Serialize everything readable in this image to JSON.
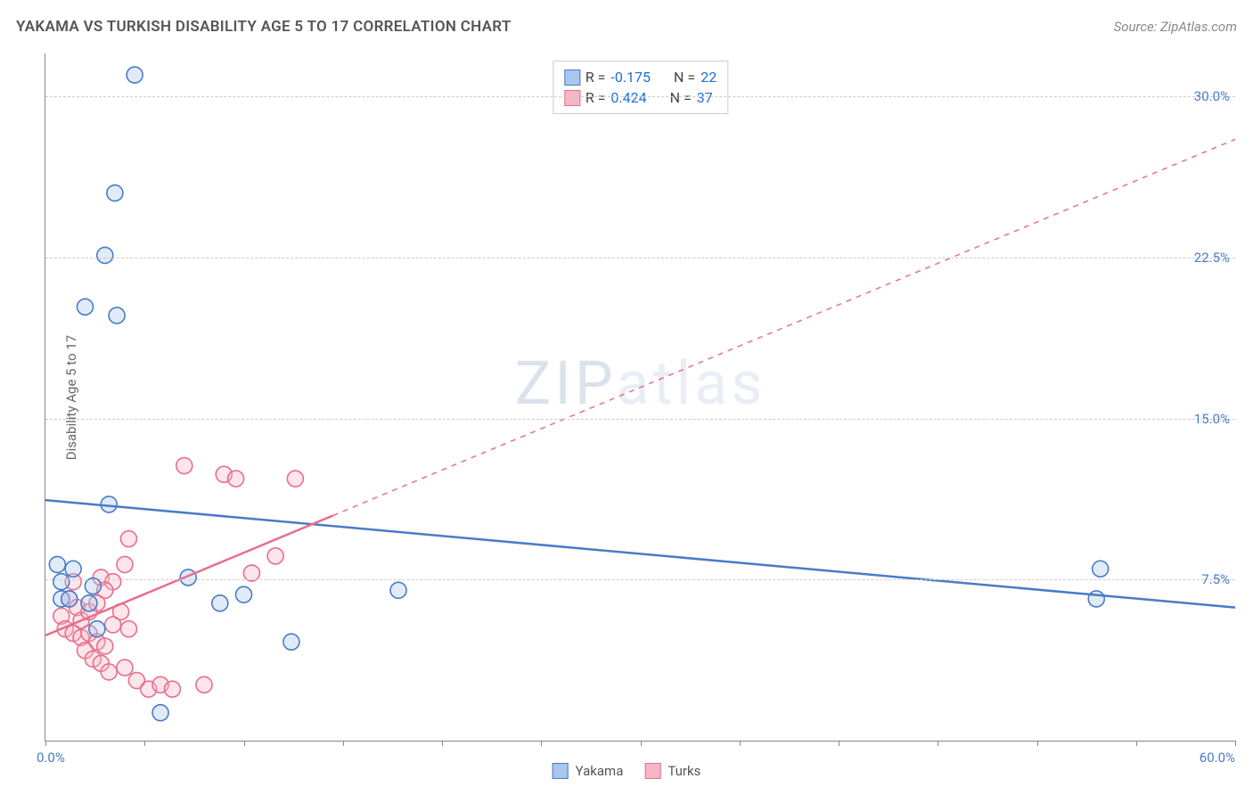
{
  "title": "YAKAMA VS TURKISH DISABILITY AGE 5 TO 17 CORRELATION CHART",
  "source": "Source: ZipAtlas.com",
  "y_axis_label": "Disability Age 5 to 17",
  "watermark_bold": "ZIP",
  "watermark_faint": "atlas",
  "chart": {
    "type": "scatter",
    "xlim": [
      0,
      60
    ],
    "ylim": [
      0,
      32
    ],
    "x_ticks": [
      0,
      5,
      10,
      15,
      20,
      25,
      30,
      35,
      40,
      45,
      50,
      55,
      60
    ],
    "x_min_label": "0.0%",
    "x_max_label": "60.0%",
    "y_gridlines": [
      7.5,
      15.0,
      22.5,
      30.0
    ],
    "y_tick_labels": [
      "7.5%",
      "15.0%",
      "22.5%",
      "30.0%"
    ],
    "background_color": "#ffffff",
    "grid_color": "#cccccc",
    "axis_color": "#888888",
    "tick_label_color": "#4a7bc8",
    "marker_radius": 9,
    "marker_fill_opacity": 0.35,
    "marker_stroke_width": 1.6,
    "series": [
      {
        "name": "Yakama",
        "color_stroke": "#4a7bc8",
        "color_fill": "#a9c6ec",
        "stats": {
          "R": "-0.175",
          "N": "22"
        },
        "trend": {
          "x1": 0,
          "y1": 11.2,
          "x2": 60,
          "y2": 6.2,
          "solid_until_x": 60,
          "width": 2.5
        },
        "points": [
          [
            4.5,
            31.0
          ],
          [
            3.5,
            25.5
          ],
          [
            3.0,
            22.6
          ],
          [
            2.0,
            20.2
          ],
          [
            3.6,
            19.8
          ],
          [
            3.2,
            11.0
          ],
          [
            0.6,
            8.2
          ],
          [
            1.4,
            8.0
          ],
          [
            0.8,
            7.4
          ],
          [
            0.8,
            6.6
          ],
          [
            1.2,
            6.6
          ],
          [
            2.2,
            6.4
          ],
          [
            2.4,
            7.2
          ],
          [
            7.2,
            7.6
          ],
          [
            8.8,
            6.4
          ],
          [
            5.8,
            1.3
          ],
          [
            10.0,
            6.8
          ],
          [
            12.4,
            4.6
          ],
          [
            17.8,
            7.0
          ],
          [
            53.2,
            8.0
          ],
          [
            53.0,
            6.6
          ],
          [
            2.6,
            5.2
          ]
        ]
      },
      {
        "name": "Turks",
        "color_stroke": "#e86f8c",
        "color_fill": "#f5b7c6",
        "stats": {
          "R": "0.424",
          "N": "37"
        },
        "trend": {
          "x1": 0,
          "y1": 4.9,
          "x2": 60,
          "y2": 28.0,
          "solid_until_x": 14.5,
          "width": 2.5
        },
        "points": [
          [
            7.0,
            12.8
          ],
          [
            4.2,
            9.4
          ],
          [
            9.0,
            12.4
          ],
          [
            9.6,
            12.2
          ],
          [
            12.6,
            12.2
          ],
          [
            4.0,
            8.2
          ],
          [
            2.8,
            7.6
          ],
          [
            3.4,
            7.4
          ],
          [
            3.0,
            7.0
          ],
          [
            1.2,
            6.6
          ],
          [
            1.4,
            7.4
          ],
          [
            1.6,
            6.2
          ],
          [
            1.8,
            5.6
          ],
          [
            2.2,
            6.0
          ],
          [
            2.6,
            6.4
          ],
          [
            0.8,
            5.8
          ],
          [
            1.0,
            5.2
          ],
          [
            1.4,
            5.0
          ],
          [
            1.8,
            4.8
          ],
          [
            2.2,
            5.0
          ],
          [
            2.6,
            4.6
          ],
          [
            3.0,
            4.4
          ],
          [
            3.4,
            5.4
          ],
          [
            3.8,
            6.0
          ],
          [
            4.2,
            5.2
          ],
          [
            2.0,
            4.2
          ],
          [
            2.4,
            3.8
          ],
          [
            2.8,
            3.6
          ],
          [
            3.2,
            3.2
          ],
          [
            4.0,
            3.4
          ],
          [
            4.6,
            2.8
          ],
          [
            5.2,
            2.4
          ],
          [
            5.8,
            2.6
          ],
          [
            6.4,
            2.4
          ],
          [
            8.0,
            2.6
          ],
          [
            10.4,
            7.8
          ],
          [
            11.6,
            8.6
          ]
        ]
      }
    ]
  },
  "legend": {
    "series1_label": "Yakama",
    "series2_label": "Turks"
  }
}
